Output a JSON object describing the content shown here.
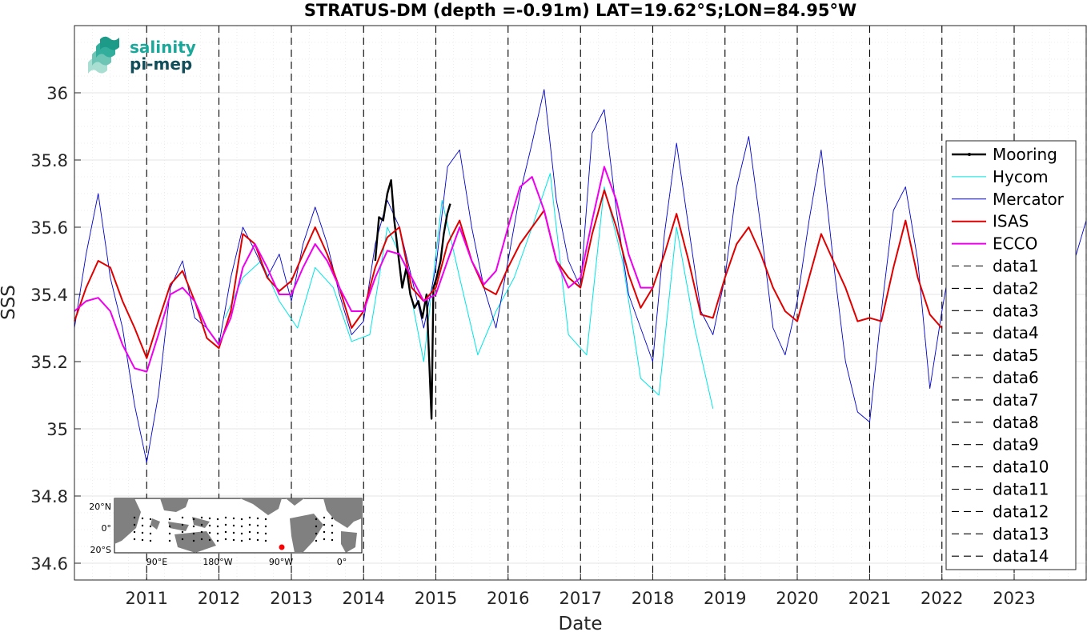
{
  "chart_data": {
    "type": "line",
    "title": "STRATUS-DM (depth =-0.91m) LAT=19.62°S;LON=84.95°W",
    "xlabel": "Date",
    "ylabel": "SSS",
    "xlim": [
      "2010-01-01",
      "2023-12-31"
    ],
    "ylim": [
      34.55,
      36.2
    ],
    "yticks": [
      34.6,
      34.8,
      35,
      35.2,
      35.4,
      35.6,
      35.8,
      36
    ],
    "ytick_labels": [
      "34.6",
      "34.8",
      "35",
      "35.2",
      "35.4",
      "35.6",
      "35.8",
      "36"
    ],
    "xticks": [
      "2011-01-01",
      "2012-01-01",
      "2013-01-01",
      "2014-01-01",
      "2015-01-01",
      "2016-01-01",
      "2017-01-01",
      "2018-01-01",
      "2019-01-01",
      "2020-01-01",
      "2021-01-01",
      "2022-01-01",
      "2023-01-01"
    ],
    "xtick_labels": [
      "2011",
      "2012",
      "2013",
      "2014",
      "2015",
      "2016",
      "2017",
      "2018",
      "2019",
      "2020",
      "2021",
      "2022",
      "2023"
    ],
    "grid": true,
    "minor_grid": true,
    "legend_position": "right",
    "series": [
      {
        "name": "Mooring",
        "color": "#000000",
        "style": "solid-dot",
        "x": [
          "2014-03-01",
          "2014-03-20",
          "2014-04-10",
          "2014-05-01",
          "2014-05-20",
          "2014-06-05",
          "2014-06-25",
          "2014-07-15",
          "2014-08-05",
          "2014-08-25",
          "2014-09-15",
          "2014-10-05",
          "2014-10-25",
          "2014-11-15",
          "2014-12-10",
          "2014-12-20",
          "2015-01-05",
          "2015-01-25",
          "2015-02-10",
          "2015-02-28",
          "2015-03-15"
        ],
        "y": [
          35.5,
          35.63,
          35.62,
          35.7,
          35.74,
          35.62,
          35.52,
          35.42,
          35.48,
          35.4,
          35.36,
          35.38,
          35.33,
          35.4,
          35.03,
          35.42,
          35.45,
          35.5,
          35.58,
          35.64,
          35.67
        ]
      },
      {
        "name": "Hycom",
        "color": "#00e5e5",
        "style": "solid",
        "x": [
          "2012-02-01",
          "2012-05-01",
          "2012-08-01",
          "2012-11-01",
          "2013-02-01",
          "2013-05-01",
          "2013-08-01",
          "2013-11-01",
          "2014-02-01",
          "2014-05-01",
          "2014-08-01",
          "2014-11-01",
          "2015-02-01",
          "2015-05-01",
          "2015-08-01",
          "2015-11-01",
          "2016-02-01",
          "2016-05-01",
          "2016-08-01",
          "2016-11-01",
          "2017-02-01",
          "2017-05-01",
          "2017-08-01",
          "2017-11-01",
          "2018-02-01",
          "2018-05-01",
          "2018-08-01",
          "2018-11-01"
        ],
        "y": [
          35.33,
          35.45,
          35.5,
          35.38,
          35.3,
          35.48,
          35.42,
          35.26,
          35.28,
          35.6,
          35.48,
          35.2,
          35.68,
          35.45,
          35.22,
          35.35,
          35.45,
          35.6,
          35.76,
          35.28,
          35.22,
          35.72,
          35.5,
          35.15,
          35.1,
          35.6,
          35.3,
          35.06
        ]
      },
      {
        "name": "Mercator",
        "color": "#0000cc",
        "style": "solid",
        "x": [
          "2010-01-01",
          "2010-03-01",
          "2010-05-01",
          "2010-07-01",
          "2010-09-01",
          "2010-11-01",
          "2011-01-01",
          "2011-03-01",
          "2011-05-01",
          "2011-07-01",
          "2011-09-01",
          "2011-11-01",
          "2012-01-01",
          "2012-03-01",
          "2012-05-01",
          "2012-07-01",
          "2012-09-01",
          "2012-11-01",
          "2013-01-01",
          "2013-03-01",
          "2013-05-01",
          "2013-07-01",
          "2013-09-01",
          "2013-11-01",
          "2014-01-01",
          "2014-03-01",
          "2014-05-01",
          "2014-07-01",
          "2014-09-01",
          "2014-11-01",
          "2015-01-01",
          "2015-03-01",
          "2015-05-01",
          "2015-07-01",
          "2015-09-01",
          "2015-11-01",
          "2016-01-01",
          "2016-03-01",
          "2016-05-01",
          "2016-07-01",
          "2016-09-01",
          "2016-11-01",
          "2017-01-01",
          "2017-03-01",
          "2017-05-01",
          "2017-07-01",
          "2017-09-01",
          "2017-11-01",
          "2018-01-01",
          "2018-03-01",
          "2018-05-01",
          "2018-07-01",
          "2018-09-01",
          "2018-11-01",
          "2019-01-01",
          "2019-03-01",
          "2019-05-01",
          "2019-07-01",
          "2019-09-01",
          "2019-11-01",
          "2020-01-01",
          "2020-03-01",
          "2020-05-01",
          "2020-07-01",
          "2020-09-01",
          "2020-11-01",
          "2021-01-01",
          "2021-03-01",
          "2021-05-01",
          "2021-07-01",
          "2021-09-01",
          "2021-11-01",
          "2022-01-01",
          "2022-03-01",
          "2022-05-01",
          "2022-07-01",
          "2022-09-01",
          "2022-11-01",
          "2023-01-01",
          "2023-03-01",
          "2023-05-01",
          "2023-07-01",
          "2023-09-01",
          "2023-11-01",
          "2023-12-31"
        ],
        "y": [
          35.3,
          35.52,
          35.7,
          35.45,
          35.3,
          35.07,
          34.9,
          35.1,
          35.42,
          35.5,
          35.33,
          35.3,
          35.25,
          35.45,
          35.6,
          35.53,
          35.45,
          35.52,
          35.38,
          35.55,
          35.66,
          35.55,
          35.4,
          35.28,
          35.32,
          35.55,
          35.68,
          35.6,
          35.45,
          35.3,
          35.48,
          35.78,
          35.83,
          35.6,
          35.42,
          35.3,
          35.5,
          35.7,
          35.85,
          36.01,
          35.68,
          35.5,
          35.42,
          35.88,
          35.95,
          35.65,
          35.4,
          35.3,
          35.2,
          35.58,
          35.85,
          35.6,
          35.35,
          35.28,
          35.45,
          35.72,
          35.87,
          35.6,
          35.3,
          35.22,
          35.38,
          35.62,
          35.83,
          35.5,
          35.2,
          35.05,
          35.02,
          35.35,
          35.65,
          35.72,
          35.5,
          35.12,
          35.35,
          35.55,
          35.45,
          35.3,
          35.25,
          35.15,
          35.2,
          35.4,
          35.55,
          35.45,
          35.3,
          35.5,
          35.62
        ]
      },
      {
        "name": "ISAS",
        "color": "#e00000",
        "style": "solid",
        "x": [
          "2010-01-01",
          "2010-03-01",
          "2010-05-01",
          "2010-07-01",
          "2010-09-01",
          "2010-11-01",
          "2011-01-01",
          "2011-03-01",
          "2011-05-01",
          "2011-07-01",
          "2011-09-01",
          "2011-11-01",
          "2012-01-01",
          "2012-03-01",
          "2012-05-01",
          "2012-07-01",
          "2012-09-01",
          "2012-11-01",
          "2013-01-01",
          "2013-03-01",
          "2013-05-01",
          "2013-07-01",
          "2013-09-01",
          "2013-11-01",
          "2014-01-01",
          "2014-03-01",
          "2014-05-01",
          "2014-07-01",
          "2014-09-01",
          "2014-11-01",
          "2015-01-01",
          "2015-03-01",
          "2015-05-01",
          "2015-07-01",
          "2015-09-01",
          "2015-11-01",
          "2016-01-01",
          "2016-03-01",
          "2016-05-01",
          "2016-07-01",
          "2016-09-01",
          "2016-11-01",
          "2017-01-01",
          "2017-03-01",
          "2017-05-01",
          "2017-07-01",
          "2017-09-01",
          "2017-11-01",
          "2018-01-01",
          "2018-03-01",
          "2018-05-01",
          "2018-07-01",
          "2018-09-01",
          "2018-11-01",
          "2019-01-01",
          "2019-03-01",
          "2019-05-01",
          "2019-07-01",
          "2019-09-01",
          "2019-11-01",
          "2020-01-01",
          "2020-03-01",
          "2020-05-01",
          "2020-07-01",
          "2020-09-01",
          "2020-11-01",
          "2021-01-01",
          "2021-03-01",
          "2021-05-01",
          "2021-07-01",
          "2021-09-01",
          "2021-11-01",
          "2021-12-31"
        ],
        "y": [
          35.32,
          35.42,
          35.5,
          35.48,
          35.38,
          35.3,
          35.21,
          35.32,
          35.43,
          35.47,
          35.38,
          35.27,
          35.24,
          35.35,
          35.58,
          35.55,
          35.45,
          35.41,
          35.44,
          35.52,
          35.6,
          35.52,
          35.42,
          35.3,
          35.35,
          35.48,
          35.57,
          35.6,
          35.42,
          35.38,
          35.42,
          35.55,
          35.62,
          35.5,
          35.42,
          35.4,
          35.48,
          35.55,
          35.6,
          35.65,
          35.5,
          35.45,
          35.42,
          35.58,
          35.71,
          35.6,
          35.46,
          35.36,
          35.42,
          35.52,
          35.64,
          35.5,
          35.34,
          35.33,
          35.45,
          35.55,
          35.6,
          35.52,
          35.42,
          35.35,
          35.32,
          35.45,
          35.58,
          35.5,
          35.42,
          35.32,
          35.33,
          35.32,
          35.48,
          35.62,
          35.45,
          35.34,
          35.3
        ]
      },
      {
        "name": "ECCO",
        "color": "#ee00ee",
        "style": "solid",
        "x": [
          "2010-01-01",
          "2010-03-01",
          "2010-05-01",
          "2010-07-01",
          "2010-09-01",
          "2010-11-01",
          "2011-01-01",
          "2011-03-01",
          "2011-05-01",
          "2011-07-01",
          "2011-09-01",
          "2011-11-01",
          "2012-01-01",
          "2012-03-01",
          "2012-05-01",
          "2012-07-01",
          "2012-09-01",
          "2012-11-01",
          "2013-01-01",
          "2013-03-01",
          "2013-05-01",
          "2013-07-01",
          "2013-09-01",
          "2013-11-01",
          "2014-01-01",
          "2014-03-01",
          "2014-05-01",
          "2014-07-01",
          "2014-09-01",
          "2014-11-01",
          "2015-01-01",
          "2015-03-01",
          "2015-05-01",
          "2015-07-01",
          "2015-09-01",
          "2015-11-01",
          "2016-01-01",
          "2016-03-01",
          "2016-05-01",
          "2016-07-01",
          "2016-09-01",
          "2016-11-01",
          "2017-01-01",
          "2017-03-01",
          "2017-05-01",
          "2017-07-01",
          "2017-09-01",
          "2017-11-01",
          "2017-12-31"
        ],
        "y": [
          35.35,
          35.38,
          35.39,
          35.35,
          35.25,
          35.18,
          35.17,
          35.28,
          35.4,
          35.42,
          35.38,
          35.3,
          35.25,
          35.33,
          35.48,
          35.55,
          35.48,
          35.4,
          35.4,
          35.48,
          35.55,
          35.5,
          35.42,
          35.35,
          35.35,
          35.45,
          35.53,
          35.52,
          35.45,
          35.38,
          35.4,
          35.5,
          35.6,
          35.5,
          35.43,
          35.47,
          35.6,
          35.72,
          35.75,
          35.65,
          35.5,
          35.42,
          35.45,
          35.62,
          35.78,
          35.68,
          35.52,
          35.42,
          35.42
        ]
      }
    ],
    "vertical_lines": [
      {
        "name": "data1",
        "x": "2011-01-01"
      },
      {
        "name": "data2",
        "x": "2012-01-01"
      },
      {
        "name": "data3",
        "x": "2013-01-01"
      },
      {
        "name": "data4",
        "x": "2014-01-01"
      },
      {
        "name": "data5",
        "x": "2015-01-01"
      },
      {
        "name": "data6",
        "x": "2016-01-01"
      },
      {
        "name": "data7",
        "x": "2017-01-01"
      },
      {
        "name": "data8",
        "x": "2018-01-01"
      },
      {
        "name": "data9",
        "x": "2019-01-01"
      },
      {
        "name": "data10",
        "x": "2020-01-01"
      },
      {
        "name": "data11",
        "x": "2021-01-01"
      },
      {
        "name": "data12",
        "x": "2022-01-01"
      },
      {
        "name": "data13",
        "x": "2023-01-01"
      },
      {
        "name": "data14",
        "x": "2023-12-31"
      }
    ],
    "legend": [
      "Mooring",
      "Hycom",
      "Mercator",
      "ISAS",
      "ECCO",
      "data1",
      "data2",
      "data3",
      "data4",
      "data5",
      "data6",
      "data7",
      "data8",
      "data9",
      "data10",
      "data11",
      "data12",
      "data13",
      "data14"
    ]
  },
  "logo": {
    "line1": "salinity",
    "line2": "pi-mep",
    "color1": "#1aa89a",
    "color2": "#124e5a"
  },
  "inset_map": {
    "lat_labels": [
      "20°N",
      "0°",
      "20°S"
    ],
    "lon_labels": [
      "90°E",
      "180°W",
      "90°W",
      "0°"
    ],
    "land_color": "#808080",
    "ocean_color": "#ffffff",
    "marker_color": "#ff0000",
    "site": {
      "lat": -19.62,
      "lon": -84.95
    }
  }
}
